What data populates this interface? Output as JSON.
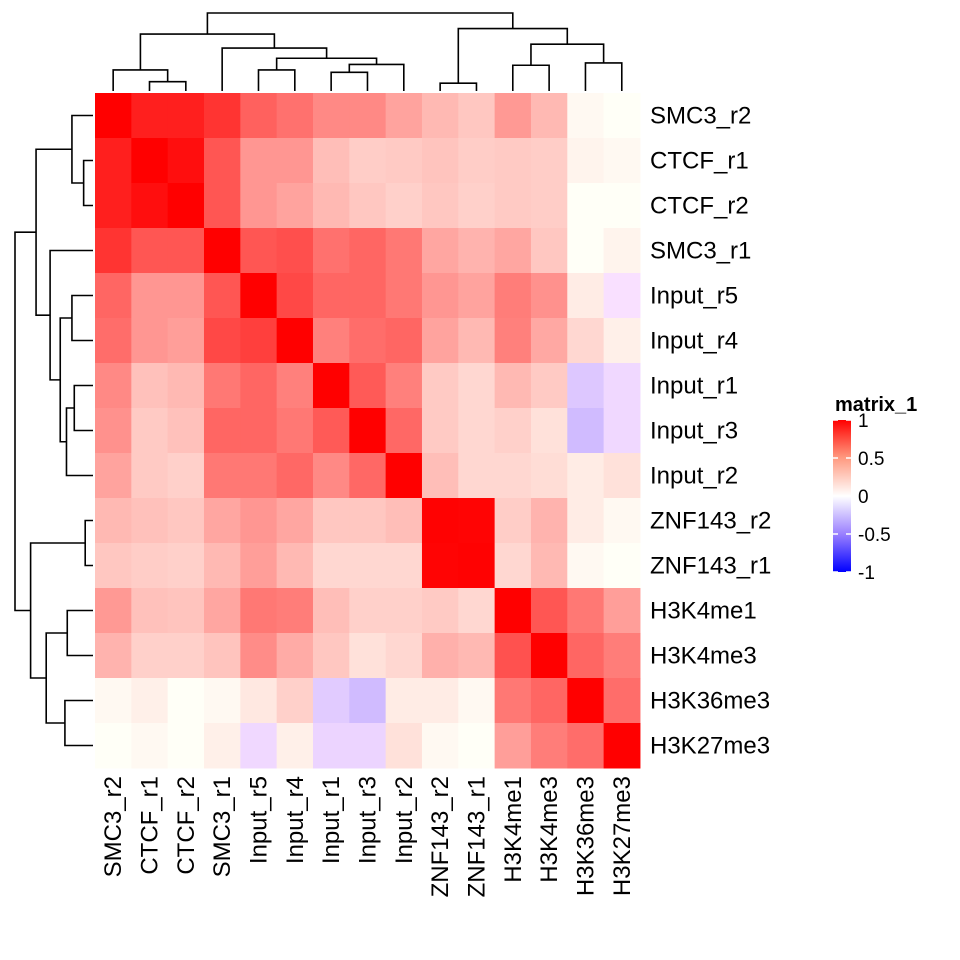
{
  "chart_data": {
    "type": "heatmap",
    "rows": [
      "SMC3_r2",
      "CTCF_r1",
      "CTCF_r2",
      "SMC3_r1",
      "Input_r5",
      "Input_r4",
      "Input_r1",
      "Input_r3",
      "Input_r2",
      "ZNF143_r2",
      "ZNF143_r1",
      "H3K4me1",
      "H3K4me3",
      "H3K36me3",
      "H3K27me3"
    ],
    "columns": [
      "SMC3_r2",
      "CTCF_r1",
      "CTCF_r2",
      "SMC3_r1",
      "Input_r5",
      "Input_r4",
      "Input_r1",
      "Input_r3",
      "Input_r2",
      "ZNF143_r2",
      "ZNF143_r1",
      "H3K4me1",
      "H3K4me3",
      "H3K36me3",
      "H3K27me3"
    ],
    "values": [
      [
        1,
        0.85,
        0.85,
        0.75,
        0.55,
        0.48,
        0.38,
        0.38,
        0.28,
        0.2,
        0.15,
        0.32,
        0.2,
        0.01,
        0
      ],
      [
        0.85,
        1,
        0.93,
        0.6,
        0.33,
        0.33,
        0.18,
        0.13,
        0.14,
        0.16,
        0.13,
        0.14,
        0.13,
        0.02,
        0.01
      ],
      [
        0.85,
        0.93,
        1,
        0.6,
        0.33,
        0.28,
        0.2,
        0.15,
        0.12,
        0.15,
        0.12,
        0.14,
        0.13,
        0,
        0
      ],
      [
        0.75,
        0.6,
        0.6,
        1,
        0.6,
        0.63,
        0.48,
        0.53,
        0.45,
        0.27,
        0.22,
        0.27,
        0.15,
        0,
        0.02
      ],
      [
        0.53,
        0.33,
        0.33,
        0.6,
        1,
        0.66,
        0.53,
        0.53,
        0.45,
        0.33,
        0.28,
        0.43,
        0.35,
        0.04,
        -0.01
      ],
      [
        0.5,
        0.33,
        0.3,
        0.66,
        0.7,
        1,
        0.42,
        0.5,
        0.53,
        0.28,
        0.2,
        0.42,
        0.26,
        0.1,
        0.03
      ],
      [
        0.38,
        0.17,
        0.2,
        0.45,
        0.53,
        0.42,
        1,
        0.58,
        0.42,
        0.14,
        0.1,
        0.2,
        0.14,
        -0.08,
        -0.03
      ],
      [
        0.35,
        0.14,
        0.17,
        0.53,
        0.53,
        0.45,
        0.58,
        1,
        0.52,
        0.14,
        0.1,
        0.12,
        0.07,
        -0.12,
        -0.03
      ],
      [
        0.28,
        0.14,
        0.12,
        0.45,
        0.45,
        0.52,
        0.38,
        0.52,
        1,
        0.18,
        0.1,
        0.1,
        0.08,
        0.04,
        0.07
      ],
      [
        0.2,
        0.17,
        0.15,
        0.27,
        0.33,
        0.27,
        0.15,
        0.15,
        0.18,
        0.99,
        0.98,
        0.13,
        0.22,
        0.04,
        0.01
      ],
      [
        0.15,
        0.13,
        0.12,
        0.2,
        0.3,
        0.2,
        0.1,
        0.1,
        0.1,
        0.98,
        0.99,
        0.1,
        0.2,
        0.01,
        0
      ],
      [
        0.32,
        0.17,
        0.16,
        0.27,
        0.45,
        0.43,
        0.18,
        0.12,
        0.12,
        0.14,
        0.1,
        1,
        0.6,
        0.45,
        0.3
      ],
      [
        0.22,
        0.12,
        0.12,
        0.16,
        0.37,
        0.25,
        0.15,
        0.07,
        0.1,
        0.23,
        0.2,
        0.62,
        1,
        0.53,
        0.43
      ],
      [
        0.01,
        0.03,
        0,
        0.01,
        0.05,
        0.12,
        -0.07,
        -0.12,
        0.04,
        0.04,
        0.01,
        0.45,
        0.53,
        1,
        0.5
      ],
      [
        0,
        0.01,
        0,
        0.03,
        -0.03,
        0.03,
        -0.04,
        -0.04,
        0.07,
        0.01,
        0,
        0.3,
        0.43,
        0.5,
        1
      ]
    ],
    "color_scale": {
      "min": -1,
      "mid": 0,
      "max": 1,
      "low_color": "#0000FF",
      "mid_color": "#FFFFFF",
      "high_color": "#FF0000"
    },
    "legend": {
      "title": "matrix_1",
      "ticks": [
        "1",
        "0.5",
        "0",
        "-0.5",
        "-1"
      ],
      "placement": "right"
    },
    "row_dendrogram": true,
    "column_dendrogram": true
  }
}
